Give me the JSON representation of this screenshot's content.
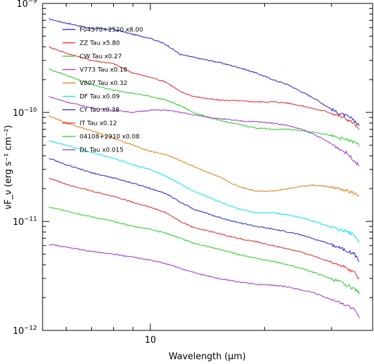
{
  "chart_data": {
    "type": "line",
    "xlabel": "Wavelength (μm)",
    "ylabel": "νF_ν (erg s⁻¹ cm⁻²)",
    "x_scale": "log",
    "y_scale": "log",
    "xlim": [
      5.2,
      38.5
    ],
    "ylim": [
      1e-12,
      1e-09
    ],
    "x_ticks": [
      {
        "value": 10,
        "label": "10"
      }
    ],
    "y_ticks": [
      {
        "mantissa": "10",
        "exponent": "−9",
        "value": 1e-09
      },
      {
        "mantissa": "10",
        "exponent": "−10",
        "value": 1e-10
      },
      {
        "mantissa": "10",
        "exponent": "−11",
        "value": 1e-11
      },
      {
        "mantissa": "10",
        "exponent": "−12",
        "value": 1e-12
      }
    ],
    "grid": false,
    "legend_position": "top-left",
    "x": [
      5.4,
      6,
      7,
      8,
      9,
      10,
      11,
      12,
      13,
      15,
      17,
      19,
      21,
      23,
      25,
      27,
      29,
      31,
      33,
      34.5,
      35.5
    ],
    "series": [
      {
        "name": "F04570+2520 x8.00",
        "color": "#1f1fcc",
        "values": [
          7.2e-10,
          6.6e-10,
          5.9e-10,
          5.8e-10,
          5.2e-10,
          4.8e-10,
          4.2e-10,
          3.4e-10,
          3.2e-10,
          2.9e-10,
          2.6e-10,
          2.3e-10,
          2e-10,
          1.8e-10,
          1.55e-10,
          1.35e-10,
          1.15e-10,
          1e-10,
          9.2e-11,
          8.5e-11,
          7.5e-11
        ]
      },
      {
        "name": "ZZ Tau x5.80",
        "color": "#e62222",
        "values": [
          4e-10,
          3.5e-10,
          3e-10,
          2.8e-10,
          2.3e-10,
          2.1e-10,
          1.9e-10,
          1.55e-10,
          1.4e-10,
          1.3e-10,
          1.28e-10,
          1.25e-10,
          1.25e-10,
          1.22e-10,
          1.15e-10,
          1.08e-10,
          1.02e-10,
          9.5e-11,
          8.6e-11,
          7.9e-11,
          6.8e-11
        ]
      },
      {
        "name": "CW Tau x0.27",
        "color": "#22cc22",
        "values": [
          2.5e-10,
          2.2e-10,
          1.8e-10,
          1.6e-10,
          1.5e-10,
          1.4e-10,
          1.3e-10,
          1.15e-10,
          1e-10,
          8.5e-11,
          7.8e-11,
          7.2e-11,
          7e-11,
          7e-11,
          6.8e-11,
          6.6e-11,
          6.3e-11,
          5.9e-11,
          5.6e-11,
          5.3e-11,
          5e-11
        ]
      },
      {
        "name": "V773 Tau x0.18",
        "color": "#9933cc",
        "values": [
          1.4e-10,
          1.25e-10,
          1.1e-10,
          1.05e-10,
          1e-10,
          1.05e-10,
          1.05e-10,
          1e-10,
          9.5e-11,
          8.8e-11,
          8.4e-11,
          8.2e-11,
          8e-11,
          7.6e-11,
          7e-11,
          6.3e-11,
          5.5e-11,
          4.8e-11,
          4.2e-11,
          3.6e-11,
          3.2e-11
        ]
      },
      {
        "name": "V807 Tau x0.32",
        "color": "#e07a10",
        "values": [
          9.3e-11,
          8e-11,
          6.8e-11,
          5.8e-11,
          5e-11,
          4.4e-11,
          4.1e-11,
          3.6e-11,
          3.2e-11,
          2.6e-11,
          2.1e-11,
          1.9e-11,
          1.9e-11,
          2e-11,
          2.1e-11,
          2.15e-11,
          2.1e-11,
          2e-11,
          1.9e-11,
          1.8e-11,
          1.7e-11
        ]
      },
      {
        "name": "DF Tau x0.09",
        "color": "#00e6e6",
        "values": [
          5.5e-11,
          5e-11,
          4.3e-11,
          3.8e-11,
          3.3e-11,
          3e-11,
          2.6e-11,
          2.2e-11,
          1.9e-11,
          1.55e-11,
          1.3e-11,
          1.2e-11,
          1.2e-11,
          1.15e-11,
          1.08e-11,
          1e-11,
          9.2e-12,
          8.5e-12,
          8e-12,
          7.5e-12,
          6.5e-12
        ]
      },
      {
        "name": "CY Tau x0.38",
        "color": "#1f1fcc",
        "values": [
          3.8e-11,
          3.3e-11,
          2.8e-11,
          2.5e-11,
          2.25e-11,
          2e-11,
          1.8e-11,
          1.5e-11,
          1.3e-11,
          1.1e-11,
          9.8e-12,
          9e-12,
          8.5e-12,
          8e-12,
          7.5e-12,
          6.9e-12,
          6.4e-12,
          5.9e-12,
          5.4e-12,
          5e-12,
          4.3e-12
        ]
      },
      {
        "name": "IT Tau x0.12",
        "color": "#e62222",
        "values": [
          2.5e-11,
          2.2e-11,
          1.9e-11,
          1.7e-11,
          1.5e-11,
          1.35e-11,
          1.2e-11,
          1e-11,
          8.8e-12,
          7.8e-12,
          7e-12,
          6.5e-12,
          6e-12,
          5.6e-12,
          5.2e-12,
          4.8e-12,
          4.4e-12,
          4.1e-12,
          3.7e-12,
          3.4e-12,
          3e-12
        ]
      },
      {
        "name": "04108+2910 x0.08",
        "color": "#22cc22",
        "values": [
          1.35e-11,
          1.25e-11,
          1.1e-11,
          1e-11,
          9e-12,
          8.5e-12,
          7.8e-12,
          7e-12,
          6.3e-12,
          5.6e-12,
          5e-12,
          4.6e-12,
          4.3e-12,
          4e-12,
          3.7e-12,
          3.4e-12,
          3.1e-12,
          2.85e-12,
          2.6e-12,
          2.4e-12,
          2.2e-12
        ]
      },
      {
        "name": "DL Tau x0.015",
        "color": "#9933cc",
        "values": [
          6.2e-12,
          5.8e-12,
          5.3e-12,
          5e-12,
          4.7e-12,
          4.4e-12,
          4.1e-12,
          3.7e-12,
          3.4e-12,
          3e-12,
          2.8e-12,
          2.65e-12,
          2.6e-12,
          2.5e-12,
          2.35e-12,
          2.2e-12,
          2e-12,
          1.85e-12,
          1.7e-12,
          1.55e-12,
          1.3e-12
        ]
      }
    ]
  }
}
